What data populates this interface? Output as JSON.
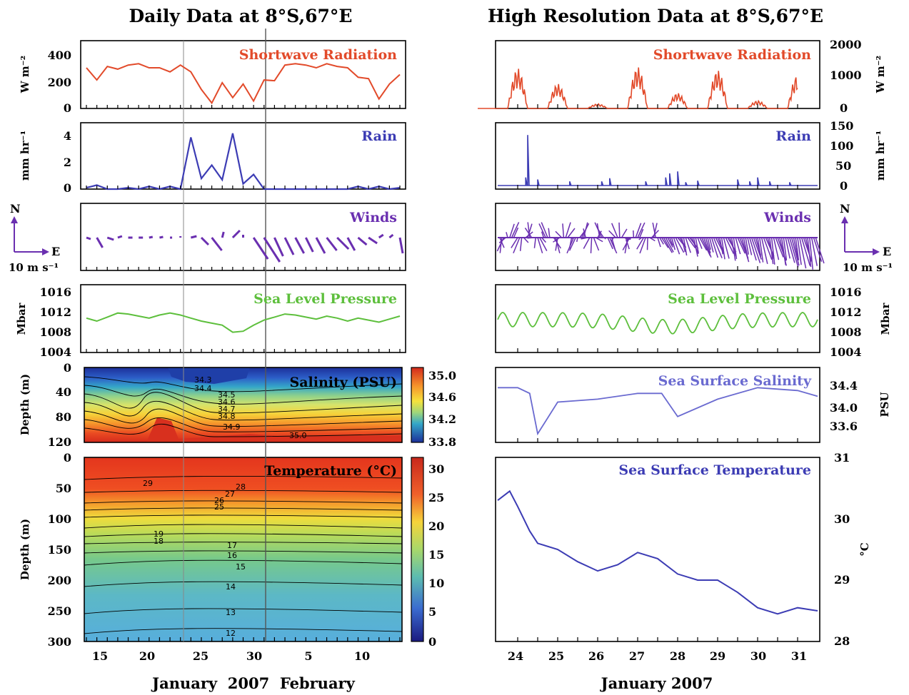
{
  "titles": {
    "left": "Daily Data at 8°S,67°E",
    "right": "High Resolution Data at 8°S,67°E"
  },
  "colors": {
    "shortwave": "#e24a2a",
    "rain": "#3c3cb4",
    "winds": "#6a2fb0",
    "pressure": "#5dbf3c",
    "sss": "#6a6ad0",
    "sst": "#3c3cb4"
  },
  "xaxis": {
    "left_ticks": [
      "15",
      "20",
      "25",
      "30",
      "5",
      "10"
    ],
    "left_label": "January  2007  February",
    "right_ticks": [
      "24",
      "25",
      "26",
      "27",
      "28",
      "29",
      "30",
      "31"
    ],
    "right_label": "January 2007"
  },
  "panels": {
    "shortwave": {
      "title": "Shortwave Radiation",
      "left_ylabel": "W m⁻²",
      "left_ticks": [
        "400",
        "200",
        "0"
      ],
      "right_ylabel": "W m⁻²",
      "right_ticks": [
        "2000",
        "1000",
        "0"
      ]
    },
    "rain": {
      "title": "Rain",
      "left_ylabel": "mm hr⁻¹",
      "left_ticks": [
        "4",
        "2",
        "0"
      ],
      "right_ylabel": "mm hr⁻¹",
      "right_ticks": [
        "150",
        "100",
        "50",
        "0"
      ]
    },
    "winds": {
      "title": "Winds",
      "compass_n": "N",
      "compass_e": "E",
      "scale_label": "10 m s⁻¹"
    },
    "pressure": {
      "title": "Sea Level Pressure",
      "left_ylabel": "Mbar",
      "right_ylabel": "Mbar",
      "ticks": [
        "1016",
        "1012",
        "1008",
        "1004"
      ]
    },
    "salinity": {
      "title": "Salinity (PSU)",
      "ylabel": "Depth (m)",
      "depth_ticks": [
        "0",
        "40",
        "80",
        "120"
      ],
      "colorbar_ticks": [
        "35.0",
        "34.6",
        "34.2",
        "33.8"
      ],
      "contour_labels": [
        "34.3",
        "34.4",
        "34.5",
        "34.6",
        "34.7",
        "34.8",
        "34.9",
        "35.0"
      ]
    },
    "sss": {
      "title": "Sea Surface Salinity",
      "ylabel": "PSU",
      "ticks": [
        "34.4",
        "34.0",
        "33.6"
      ]
    },
    "temperature": {
      "title": "Temperature (°C)",
      "ylabel": "Depth (m)",
      "depth_ticks": [
        "0",
        "50",
        "100",
        "150",
        "200",
        "250",
        "300"
      ],
      "colorbar_ticks": [
        "30",
        "25",
        "20",
        "15",
        "10",
        "5",
        "0"
      ],
      "contour_labels": [
        "29",
        "28",
        "27",
        "26",
        "25",
        "19",
        "18",
        "17",
        "16",
        "15",
        "14",
        "13",
        "12"
      ]
    },
    "sst": {
      "title": "Sea Surface Temperature",
      "ylabel": "°C",
      "ticks": [
        "31",
        "30",
        "29",
        "28"
      ]
    }
  },
  "chart_data": [
    {
      "type": "line",
      "title": "Shortwave Radiation",
      "ylabel": "W m⁻²",
      "x": [
        "Jan 14",
        "Jan 15",
        "Jan 16",
        "Jan 17",
        "Jan 18",
        "Jan 19",
        "Jan 20",
        "Jan 21",
        "Jan 22",
        "Jan 23",
        "Jan 24",
        "Jan 25",
        "Jan 26",
        "Jan 27",
        "Jan 28",
        "Jan 29",
        "Jan 30",
        "Jan 31",
        "Feb 1",
        "Feb 2",
        "Feb 3",
        "Feb 4",
        "Feb 5",
        "Feb 6",
        "Feb 7",
        "Feb 8",
        "Feb 9",
        "Feb 10",
        "Feb 11",
        "Feb 12",
        "Feb 13"
      ],
      "values": [
        300,
        210,
        310,
        290,
        320,
        330,
        300,
        300,
        270,
        320,
        270,
        140,
        40,
        190,
        80,
        180,
        55,
        210,
        205,
        320,
        330,
        320,
        300,
        330,
        310,
        300,
        230,
        220,
        70,
        180,
        250
      ],
      "ylim": [
        0,
        500
      ]
    },
    {
      "type": "line",
      "title": "Rain",
      "ylabel": "mm hr⁻¹",
      "x": [
        "Jan 14",
        "Jan 15",
        "Jan 16",
        "Jan 17",
        "Jan 18",
        "Jan 19",
        "Jan 20",
        "Jan 21",
        "Jan 22",
        "Jan 23",
        "Jan 24",
        "Jan 25",
        "Jan 26",
        "Jan 27",
        "Jan 28",
        "Jan 29",
        "Jan 30",
        "Jan 31",
        "Feb 1",
        "Feb 2",
        "Feb 3",
        "Feb 4",
        "Feb 5",
        "Feb 6",
        "Feb 7",
        "Feb 8",
        "Feb 9",
        "Feb 10",
        "Feb 11",
        "Feb 12",
        "Feb 13"
      ],
      "values": [
        0.1,
        0.3,
        0.0,
        0.0,
        0.1,
        0.0,
        0.2,
        0.0,
        0.2,
        0.0,
        3.9,
        0.8,
        1.8,
        0.7,
        4.2,
        0.4,
        1.1,
        0.0,
        0.0,
        0.0,
        0.0,
        0.0,
        0.0,
        0.0,
        0.0,
        0.0,
        0.2,
        0.0,
        0.2,
        0.0,
        0.1
      ],
      "ylim": [
        0,
        5
      ]
    },
    {
      "type": "line",
      "title": "Sea Level Pressure",
      "ylabel": "Mbar",
      "x": [
        "Jan 14",
        "Jan 15",
        "Jan 16",
        "Jan 17",
        "Jan 18",
        "Jan 19",
        "Jan 20",
        "Jan 21",
        "Jan 22",
        "Jan 23",
        "Jan 24",
        "Jan 25",
        "Jan 26",
        "Jan 27",
        "Jan 28",
        "Jan 29",
        "Jan 30",
        "Jan 31",
        "Feb 1",
        "Feb 2",
        "Feb 3",
        "Feb 4",
        "Feb 5",
        "Feb 6",
        "Feb 7",
        "Feb 8",
        "Feb 9",
        "Feb 10",
        "Feb 11",
        "Feb 12",
        "Feb 13"
      ],
      "values": [
        1010.8,
        1010.2,
        1011.0,
        1011.8,
        1011.6,
        1011.2,
        1010.8,
        1011.4,
        1011.8,
        1011.4,
        1010.8,
        1010.2,
        1009.8,
        1009.4,
        1008.0,
        1008.2,
        1009.4,
        1010.4,
        1011.0,
        1011.6,
        1011.4,
        1011.0,
        1010.6,
        1011.2,
        1010.8,
        1010.2,
        1010.8,
        1010.4,
        1010.0,
        1010.6,
        1011.2
      ],
      "ylim": [
        1004,
        1018
      ]
    },
    {
      "type": "line",
      "title": "Sea Surface Salinity",
      "ylabel": "PSU",
      "x": [
        "Jan 23.5",
        "Jan 24",
        "Jan 24.3",
        "Jan 24.5",
        "Jan 25",
        "Jan 26",
        "Jan 27",
        "Jan 27.6",
        "Jan 28",
        "Jan 29",
        "Jan 30",
        "Jan 31",
        "Jan 31.5"
      ],
      "values": [
        34.35,
        34.35,
        34.25,
        33.55,
        34.1,
        34.15,
        34.25,
        34.25,
        33.85,
        34.15,
        34.35,
        34.3,
        34.2
      ],
      "ylim": [
        33.4,
        34.7
      ]
    },
    {
      "type": "line",
      "title": "Sea Surface Temperature",
      "ylabel": "°C",
      "x": [
        "Jan 23.5",
        "Jan 23.8",
        "Jan 24",
        "Jan 24.3",
        "Jan 24.5",
        "Jan 25",
        "Jan 25.5",
        "Jan 26",
        "Jan 26.5",
        "Jan 27",
        "Jan 27.5",
        "Jan 28",
        "Jan 28.5",
        "Jan 29",
        "Jan 29.5",
        "Jan 30",
        "Jan 30.5",
        "Jan 31",
        "Jan 31.5"
      ],
      "values": [
        30.3,
        30.45,
        30.2,
        29.8,
        29.6,
        29.5,
        29.3,
        29.15,
        29.25,
        29.45,
        29.35,
        29.1,
        29.0,
        29.0,
        28.8,
        28.55,
        28.45,
        28.55,
        28.5
      ],
      "ylim": [
        28,
        31
      ]
    }
  ]
}
